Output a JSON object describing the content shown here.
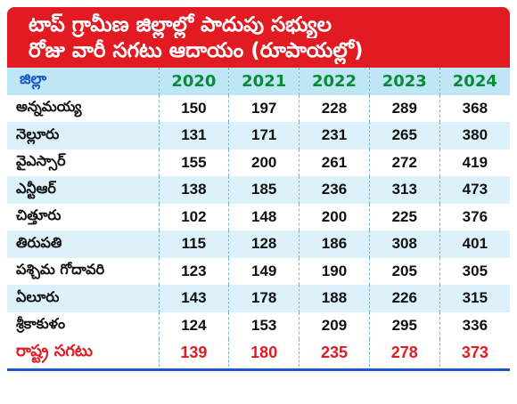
{
  "title": {
    "line1": "టాప్ గ్రామీణ జిల్లాల్లో పాదుపు సభ్యుల",
    "line2": "రోజు వారీ సగటు ఆదాయం (రూపాయల్లో)"
  },
  "table": {
    "header": {
      "name": "జిల్లా",
      "years": [
        "2020",
        "2021",
        "2022",
        "2023",
        "2024"
      ]
    },
    "rows": [
      {
        "name": "అన్నమయ్య",
        "values": [
          "150",
          "197",
          "228",
          "289",
          "368"
        ]
      },
      {
        "name": "నెల్లూరు",
        "values": [
          "131",
          "171",
          "231",
          "265",
          "380"
        ]
      },
      {
        "name": "వైఎస్సార్",
        "values": [
          "155",
          "200",
          "261",
          "272",
          "419"
        ]
      },
      {
        "name": "ఎన్టీఆర్",
        "values": [
          "138",
          "185",
          "236",
          "313",
          "473"
        ]
      },
      {
        "name": "చిత్తూరు",
        "values": [
          "102",
          "148",
          "200",
          "225",
          "376"
        ]
      },
      {
        "name": "తిరుపతి",
        "values": [
          "115",
          "128",
          "186",
          "308",
          "401"
        ]
      },
      {
        "name": "పశ్చిమ గోదావరి",
        "values": [
          "123",
          "149",
          "190",
          "205",
          "305"
        ]
      },
      {
        "name": "ఏలూరు",
        "values": [
          "143",
          "178",
          "188",
          "226",
          "315"
        ]
      },
      {
        "name": "శ్రీకాకుళం",
        "values": [
          "124",
          "153",
          "209",
          "295",
          "336"
        ]
      }
    ],
    "average": {
      "name": "రాష్ట్ర సగటు",
      "values": [
        "139",
        "180",
        "235",
        "278",
        "373"
      ]
    }
  },
  "colors": {
    "title_background": "#e21b23",
    "header_year_text": "#0a8a3a",
    "header_name_text": "#1a58c9",
    "row_band": "#dcf1fa",
    "average_text": "#e21b23"
  }
}
